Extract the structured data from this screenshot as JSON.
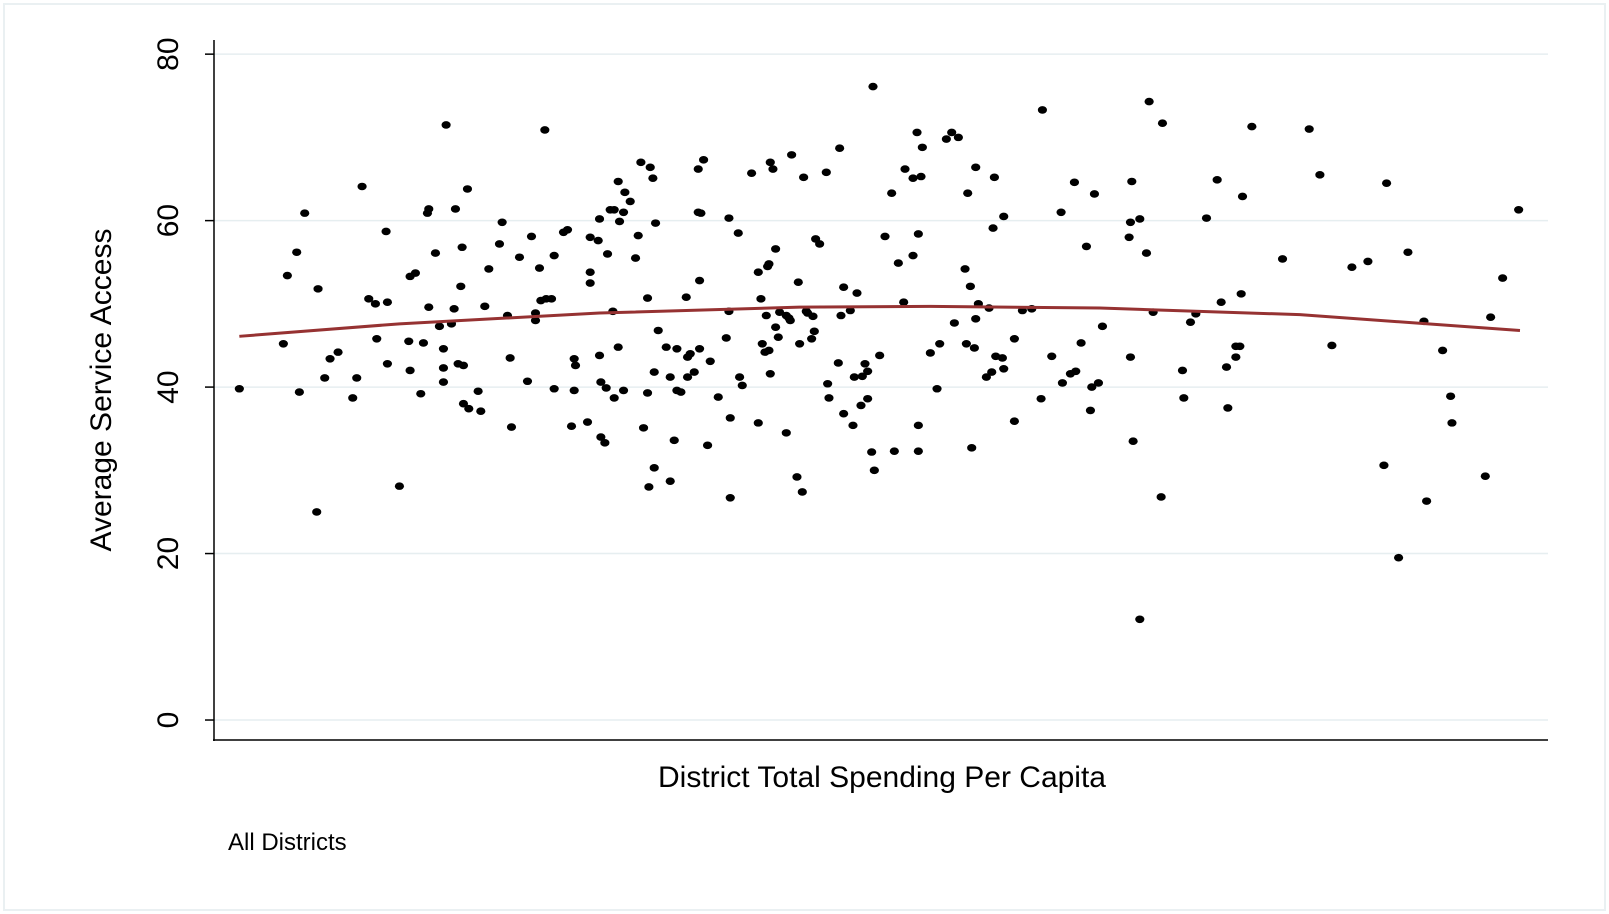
{
  "chart_data": {
    "type": "scatter",
    "x_label": "District Total Spending Per Capita",
    "y_label": "Average Service Access",
    "note": "All Districts",
    "xlim": [
      0,
      100
    ],
    "ylim": [
      -2.4,
      81.7
    ],
    "yticks": [
      0,
      20,
      40,
      60,
      80
    ],
    "grid": true,
    "color": "#000000",
    "x": [
      1.9,
      5.2,
      5.5,
      6.2,
      6.4,
      6.8,
      7.7,
      7.8,
      8.3,
      8.7,
      9.3,
      10.4,
      10.7,
      11.1,
      11.6,
      12.1,
      12.2,
      12.9,
      13.0,
      13.0,
      13.9,
      14.6,
      14.7,
      14.7,
      15.1,
      15.5,
      15.7,
      16.0,
      16.1,
      16.1,
      16.6,
      16.9,
      17.2,
      17.2,
      17.2,
      17.4,
      17.8,
      18.0,
      18.1,
      18.3,
      18.5,
      18.6,
      18.7,
      18.7,
      19.0,
      19.1,
      19.8,
      20.0,
      20.3,
      20.6,
      21.4,
      21.6,
      22.0,
      22.2,
      22.3,
      22.9,
      23.5,
      23.8,
      24.1,
      24.1,
      24.4,
      24.5,
      24.8,
      24.9,
      25.3,
      25.5,
      25.5,
      26.2,
      26.5,
      26.8,
      27.0,
      27.0,
      27.1,
      28.0,
      28.2,
      28.2,
      28.2,
      28.8,
      28.9,
      28.9,
      29.0,
      29.0,
      29.3,
      29.4,
      29.5,
      29.7,
      29.9,
      30.0,
      30.0,
      30.3,
      30.3,
      30.4,
      30.7,
      30.7,
      30.8,
      31.2,
      31.6,
      31.8,
      32.0,
      32.2,
      32.5,
      32.5,
      32.6,
      32.7,
      32.9,
      33.0,
      33.0,
      33.1,
      33.3,
      33.9,
      34.2,
      34.2,
      34.5,
      34.7,
      34.7,
      35.0,
      35.4,
      35.5,
      35.5,
      35.7,
      36.0,
      36.3,
      36.3,
      36.4,
      36.4,
      36.5,
      36.7,
      37.0,
      37.2,
      37.8,
      38.4,
      38.6,
      38.6,
      38.7,
      38.7,
      39.3,
      39.4,
      39.6,
      40.3,
      40.8,
      40.8,
      41.0,
      41.1,
      41.3,
      41.4,
      41.5,
      41.6,
      41.6,
      41.7,
      41.7,
      41.9,
      42.1,
      42.1,
      42.3,
      42.4,
      42.9,
      42.9,
      43.1,
      43.2,
      43.3,
      43.7,
      43.8,
      43.9,
      44.1,
      44.2,
      44.4,
      44.5,
      44.8,
      44.9,
      45.0,
      45.1,
      45.4,
      45.9,
      46.0,
      46.1,
      46.8,
      46.9,
      47.0,
      47.2,
      47.2,
      47.7,
      47.9,
      48.0,
      48.2,
      48.5,
      48.6,
      48.8,
      49.0,
      49.0,
      49.3,
      49.4,
      49.5,
      49.9,
      50.3,
      50.8,
      51.0,
      51.3,
      51.7,
      51.8,
      52.4,
      52.4,
      52.7,
      52.8,
      52.8,
      52.8,
      53.0,
      53.1,
      53.7,
      54.4,
      54.2,
      54.9,
      55.3,
      55.5,
      55.8,
      56.3,
      56.4,
      56.5,
      56.7,
      56.8,
      57.0,
      57.1,
      57.1,
      57.3,
      57.9,
      58.1,
      58.3,
      58.4,
      58.5,
      58.6,
      59.1,
      59.2,
      59.2,
      60.0,
      60.0,
      60.6,
      61.3,
      62.0,
      62.1,
      62.8,
      63.5,
      63.6,
      64.2,
      64.5,
      64.6,
      65.0,
      65.4,
      65.7,
      65.8,
      66.0,
      66.3,
      66.6,
      68.6,
      68.7,
      68.7,
      68.8,
      68.9,
      69.4,
      69.4,
      69.9,
      70.1,
      70.4,
      71.0,
      71.1,
      72.6,
      72.7,
      73.2,
      73.6,
      74.4,
      75.2,
      75.5,
      75.9,
      76.0,
      76.6,
      76.6,
      76.9,
      77.0,
      77.1,
      77.8,
      80.1,
      82.1,
      82.9,
      83.8,
      85.3,
      86.5,
      87.7,
      87.9,
      88.8,
      89.5,
      90.7,
      90.9,
      92.1,
      92.7,
      92.8,
      95.3,
      95.7,
      96.6,
      97.8
    ],
    "values": [
      39.8,
      45.2,
      53.4,
      56.2,
      39.4,
      60.9,
      25.0,
      51.8,
      41.1,
      43.4,
      44.2,
      38.7,
      41.1,
      64.1,
      50.6,
      50.0,
      45.8,
      58.7,
      50.2,
      42.8,
      28.1,
      45.5,
      53.3,
      42.0,
      53.7,
      39.2,
      45.3,
      60.9,
      61.4,
      49.6,
      56.1,
      47.3,
      44.6,
      42.3,
      40.6,
      71.5,
      47.6,
      49.4,
      61.4,
      42.8,
      52.1,
      56.8,
      42.6,
      38.0,
      63.8,
      37.4,
      39.5,
      37.1,
      49.7,
      54.2,
      57.2,
      59.8,
      48.6,
      43.5,
      35.2,
      55.6,
      40.7,
      58.1,
      48.9,
      48.0,
      54.3,
      50.4,
      70.9,
      50.6,
      50.6,
      55.8,
      39.8,
      58.6,
      58.9,
      35.3,
      43.4,
      39.6,
      42.6,
      35.8,
      58.0,
      53.8,
      52.5,
      57.6,
      60.2,
      43.8,
      40.6,
      34.0,
      33.3,
      39.9,
      56.0,
      61.3,
      49.1,
      38.7,
      61.3,
      44.8,
      64.7,
      59.9,
      39.6,
      61.0,
      63.4,
      62.3,
      55.5,
      58.2,
      67.0,
      35.1,
      50.7,
      39.3,
      28.0,
      66.4,
      65.1,
      41.8,
      30.3,
      59.7,
      46.8,
      44.8,
      41.2,
      28.7,
      33.6,
      39.6,
      44.6,
      39.4,
      50.8,
      43.6,
      41.2,
      44.0,
      41.8,
      66.2,
      61.0,
      44.6,
      52.8,
      60.9,
      67.3,
      33.0,
      43.1,
      38.8,
      45.9,
      60.3,
      49.1,
      26.7,
      36.3,
      58.5,
      41.2,
      40.2,
      65.7,
      53.8,
      35.7,
      50.6,
      45.2,
      44.2,
      48.6,
      54.5,
      44.4,
      54.8,
      67.0,
      41.6,
      66.2,
      47.2,
      56.6,
      46.0,
      49.0,
      34.5,
      48.6,
      48.3,
      48.0,
      67.9,
      29.2,
      52.6,
      45.2,
      27.4,
      65.2,
      49.1,
      48.9,
      45.8,
      48.5,
      46.7,
      57.8,
      57.2,
      65.8,
      40.4,
      38.7,
      42.9,
      68.7,
      48.6,
      52.0,
      36.8,
      49.2,
      35.4,
      41.2,
      51.3,
      37.8,
      41.3,
      42.8,
      41.9,
      38.6,
      32.2,
      76.1,
      30.0,
      43.8,
      58.1,
      63.3,
      32.3,
      54.9,
      50.2,
      66.2,
      55.8,
      65.1,
      70.6,
      35.4,
      58.4,
      32.3,
      65.3,
      68.8,
      44.1,
      45.2,
      39.8,
      69.8,
      70.6,
      47.7,
      70.0,
      54.2,
      45.2,
      63.3,
      52.1,
      32.7,
      44.7,
      48.2,
      66.4,
      50.0,
      41.2,
      49.5,
      41.8,
      59.1,
      65.2,
      43.7,
      43.5,
      60.5,
      42.2,
      35.9,
      45.8,
      49.2,
      49.4,
      38.6,
      73.3,
      43.7,
      61.0,
      40.5,
      41.6,
      64.6,
      41.9,
      45.3,
      56.9,
      37.2,
      40.0,
      63.2,
      40.5,
      47.3,
      58.0,
      59.8,
      43.6,
      64.7,
      33.5,
      60.2,
      12.1,
      56.1,
      74.3,
      49.0,
      26.8,
      71.7,
      42.0,
      38.7,
      47.8,
      48.8,
      60.3,
      64.9,
      50.2,
      42.4,
      37.5,
      44.9,
      43.6,
      44.9,
      51.2,
      62.9,
      71.3,
      55.4,
      71.0,
      65.5,
      45.0,
      54.4,
      55.1,
      30.6,
      64.5,
      19.5,
      56.2,
      47.9,
      26.3,
      44.4,
      38.9,
      35.7,
      29.3,
      48.4,
      53.1,
      61.3
    ],
    "fit_line": {
      "color": "#963232",
      "x": [
        1.9,
        13.9,
        28.9,
        43.9,
        53.7,
        66.4,
        81.4,
        97.9
      ],
      "values": [
        46.1,
        47.6,
        48.9,
        49.6,
        49.7,
        49.5,
        48.7,
        46.8
      ]
    }
  }
}
